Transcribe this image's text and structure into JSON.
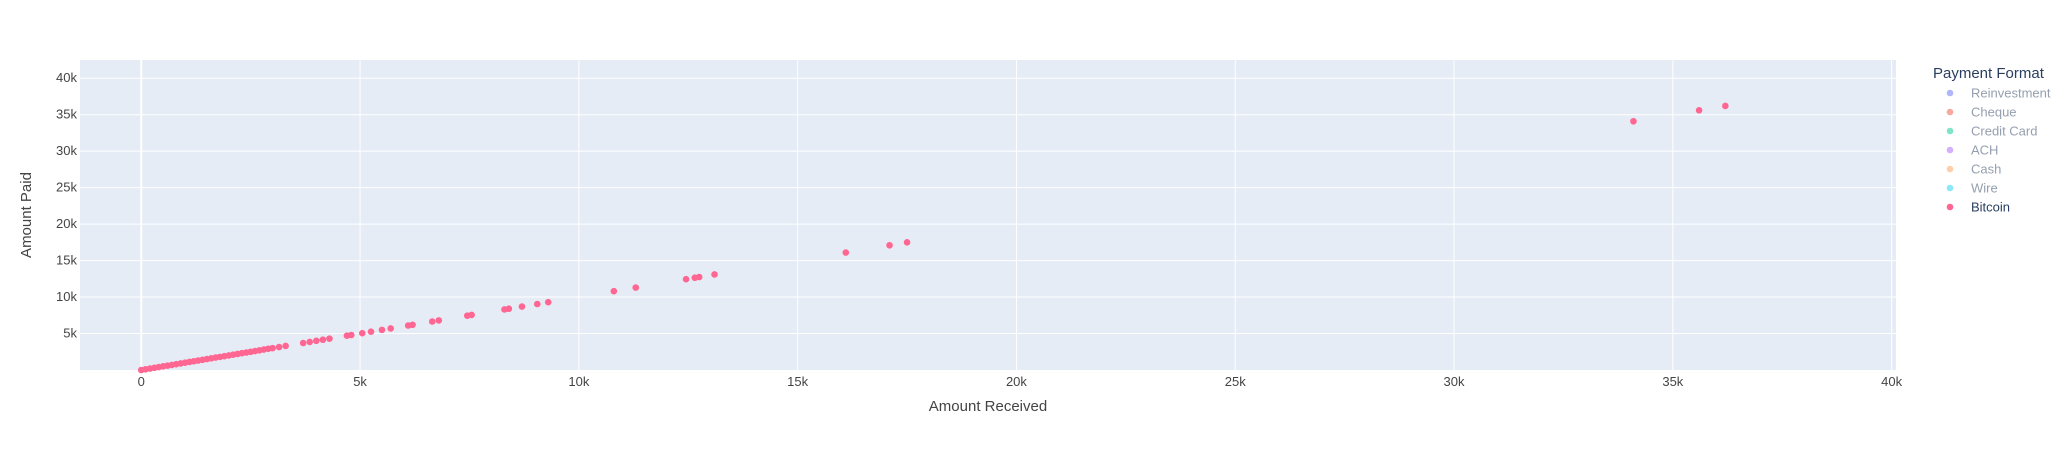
{
  "chart_data": {
    "type": "scatter",
    "title": "",
    "xlabel": "Amount Received",
    "ylabel": "Amount Paid",
    "xlim": [
      -1400,
      40100
    ],
    "ylim": [
      0,
      42500
    ],
    "x_ticks": [
      0,
      5000,
      10000,
      15000,
      20000,
      25000,
      30000,
      35000,
      40000
    ],
    "x_tick_labels": [
      "0",
      "5k",
      "10k",
      "15k",
      "20k",
      "25k",
      "30k",
      "35k",
      "40k"
    ],
    "y_ticks": [
      5000,
      10000,
      15000,
      20000,
      25000,
      30000,
      35000,
      40000
    ],
    "y_tick_labels": [
      "5k",
      "10k",
      "15k",
      "20k",
      "25k",
      "30k",
      "35k",
      "40k"
    ],
    "grid": true,
    "plot_background": "#e5ecf6",
    "legend": {
      "title": "Payment Format",
      "placement": "right",
      "entries": [
        {
          "name": "Reinvestment",
          "color": "#636efa",
          "active": false
        },
        {
          "name": "Cheque",
          "color": "#ef553b",
          "active": false
        },
        {
          "name": "Credit Card",
          "color": "#00cc96",
          "active": false
        },
        {
          "name": "ACH",
          "color": "#ab63fa",
          "active": false
        },
        {
          "name": "Cash",
          "color": "#ffa15a",
          "active": false
        },
        {
          "name": "Wire",
          "color": "#19d3f3",
          "active": false
        },
        {
          "name": "Bitcoin",
          "color": "#ff6692",
          "active": true
        }
      ]
    },
    "series": [
      {
        "name": "Bitcoin",
        "color": "#ff6692",
        "points": [
          [
            0,
            0
          ],
          [
            100,
            100
          ],
          [
            200,
            200
          ],
          [
            300,
            300
          ],
          [
            400,
            400
          ],
          [
            500,
            500
          ],
          [
            600,
            600
          ],
          [
            700,
            700
          ],
          [
            800,
            800
          ],
          [
            900,
            900
          ],
          [
            1000,
            1000
          ],
          [
            1100,
            1100
          ],
          [
            1200,
            1200
          ],
          [
            1300,
            1300
          ],
          [
            1400,
            1400
          ],
          [
            1500,
            1500
          ],
          [
            1600,
            1600
          ],
          [
            1700,
            1700
          ],
          [
            1800,
            1800
          ],
          [
            1900,
            1900
          ],
          [
            2000,
            2000
          ],
          [
            2100,
            2100
          ],
          [
            2200,
            2200
          ],
          [
            2300,
            2300
          ],
          [
            2400,
            2400
          ],
          [
            2500,
            2500
          ],
          [
            2600,
            2600
          ],
          [
            2700,
            2700
          ],
          [
            2800,
            2800
          ],
          [
            2900,
            2900
          ],
          [
            3000,
            3000
          ],
          [
            3150,
            3150
          ],
          [
            3300,
            3300
          ],
          [
            3700,
            3700
          ],
          [
            3850,
            3850
          ],
          [
            4000,
            4000
          ],
          [
            4150,
            4150
          ],
          [
            4300,
            4300
          ],
          [
            4700,
            4700
          ],
          [
            4800,
            4800
          ],
          [
            5050,
            5050
          ],
          [
            5250,
            5250
          ],
          [
            5500,
            5500
          ],
          [
            5700,
            5700
          ],
          [
            6100,
            6100
          ],
          [
            6200,
            6200
          ],
          [
            6650,
            6650
          ],
          [
            6800,
            6800
          ],
          [
            7450,
            7450
          ],
          [
            7550,
            7550
          ],
          [
            8300,
            8300
          ],
          [
            8400,
            8400
          ],
          [
            8700,
            8700
          ],
          [
            9050,
            9050
          ],
          [
            9300,
            9300
          ],
          [
            10800,
            10800
          ],
          [
            11300,
            11300
          ],
          [
            12450,
            12450
          ],
          [
            12650,
            12650
          ],
          [
            12750,
            12750
          ],
          [
            13100,
            13100
          ],
          [
            16100,
            16100
          ],
          [
            17100,
            17100
          ],
          [
            17500,
            17500
          ],
          [
            34100,
            34100
          ],
          [
            35600,
            35600
          ],
          [
            36200,
            36200
          ]
        ]
      }
    ]
  }
}
